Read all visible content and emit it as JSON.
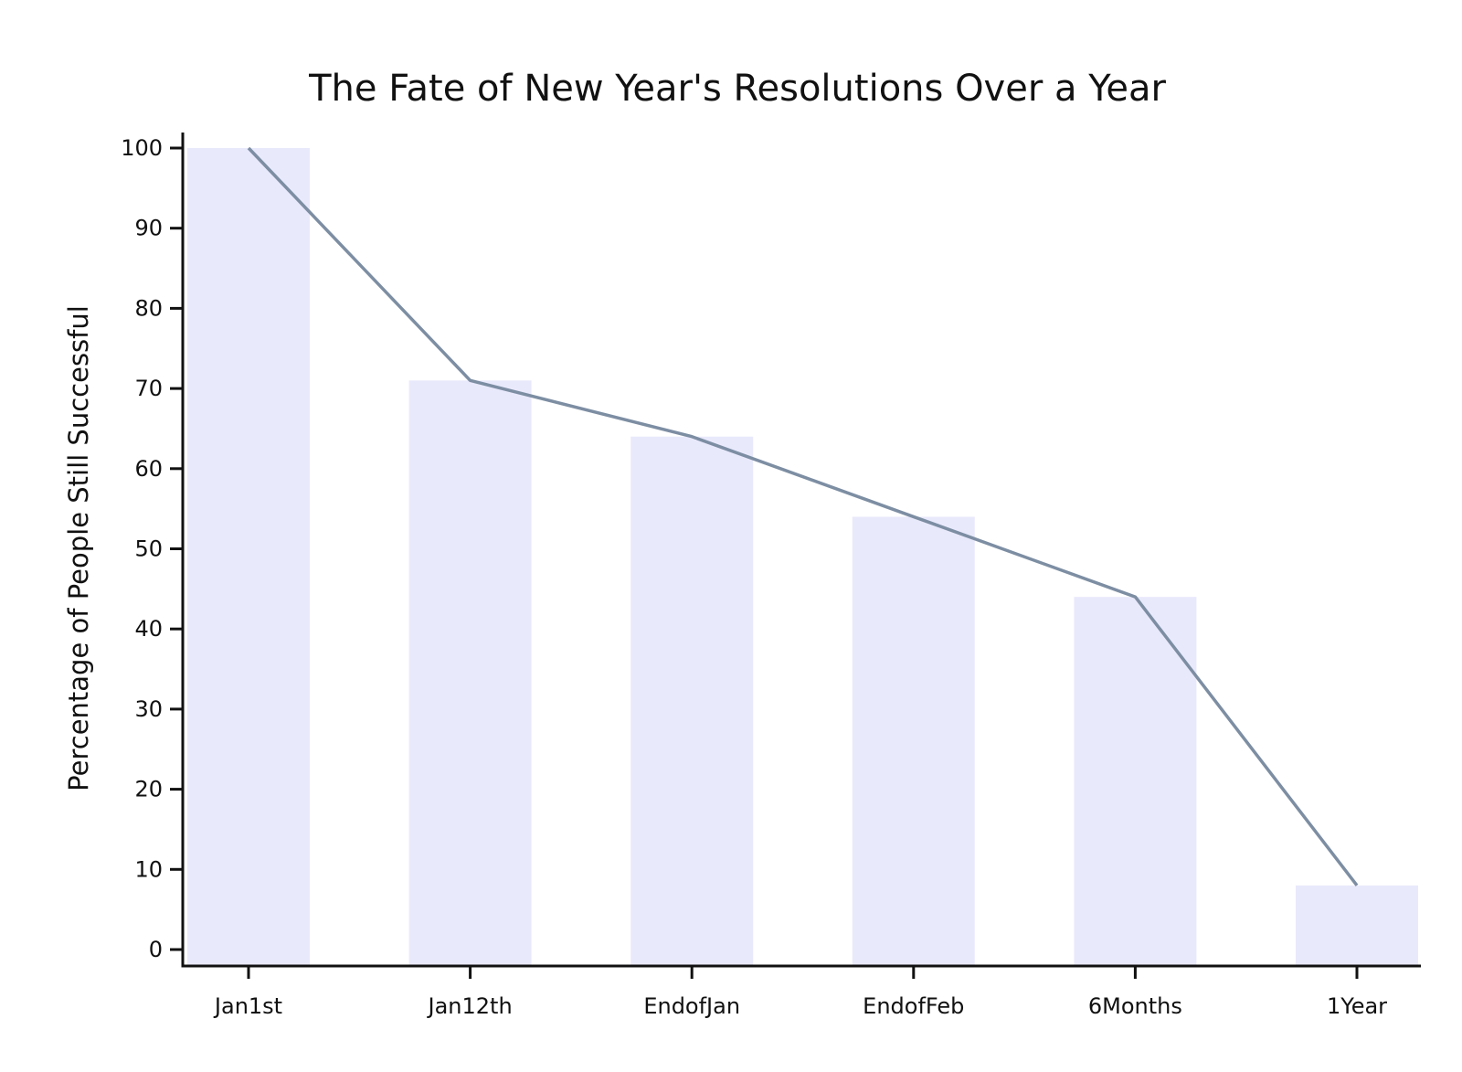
{
  "chart_data": {
    "type": "bar",
    "title": "The Fate of New Year's Resolutions Over a Year",
    "xlabel": "",
    "ylabel": "Percentage of People Still Successful",
    "categories": [
      "Jan1st",
      "Jan12th",
      "EndofJan",
      "EndofFeb",
      "6Months",
      "1Year"
    ],
    "values": [
      100,
      71,
      64,
      54,
      44,
      8
    ],
    "overlay_line": true,
    "ylim": [
      0,
      100
    ],
    "yticks": [
      0,
      10,
      20,
      30,
      40,
      50,
      60,
      70,
      80,
      90,
      100
    ],
    "grid": false,
    "colors": {
      "bar": "#e9e9fc",
      "line": "#7d8ea3",
      "axis": "#111111"
    }
  }
}
